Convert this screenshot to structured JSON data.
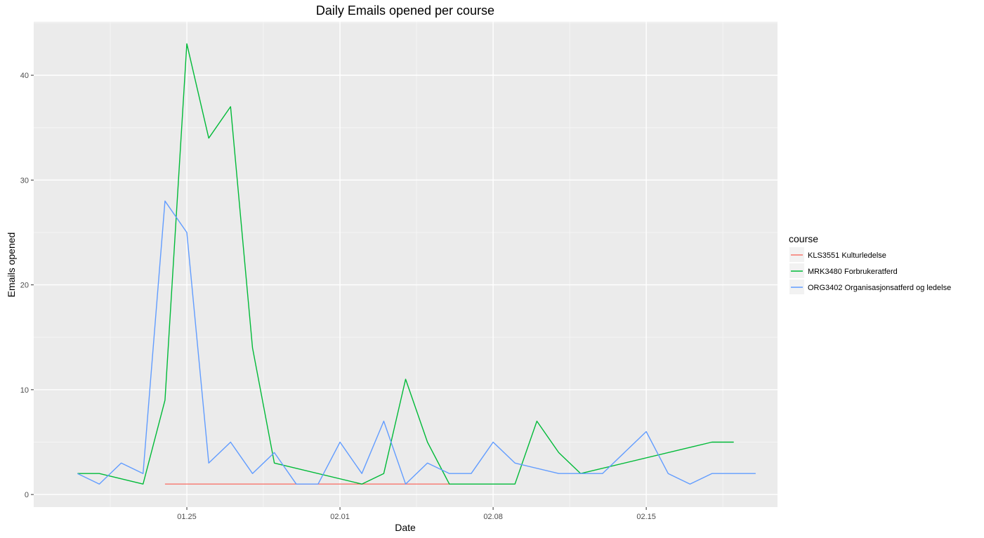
{
  "chart_data": {
    "type": "line",
    "title": "Daily Emails opened per course",
    "xlabel": "Date",
    "ylabel": "Emails opened",
    "x_ticks": [
      {
        "date": "2018-01-25",
        "label": "01.25"
      },
      {
        "date": "2018-02-01",
        "label": "02.01"
      },
      {
        "date": "2018-02-08",
        "label": "02.08"
      },
      {
        "date": "2018-02-15",
        "label": "02.15"
      }
    ],
    "xlim": [
      "2018-01-18",
      "2018-02-21"
    ],
    "y_ticks": [
      0,
      10,
      20,
      30,
      40
    ],
    "ylim": [
      -1.2,
      45.1
    ],
    "grid": true,
    "legend": {
      "title": "course",
      "position": "right"
    },
    "series": [
      {
        "name": "KLS3551 Kulturledelse",
        "color": "#F8766D",
        "points": [
          [
            "2018-01-24",
            1
          ],
          [
            "2018-01-25",
            1
          ],
          [
            "2018-01-26",
            1
          ],
          [
            "2018-01-27",
            1
          ],
          [
            "2018-01-28",
            1
          ],
          [
            "2018-01-29",
            1
          ],
          [
            "2018-01-30",
            1
          ],
          [
            "2018-01-31",
            1
          ],
          [
            "2018-02-01",
            1
          ],
          [
            "2018-02-02",
            1
          ],
          [
            "2018-02-03",
            1
          ],
          [
            "2018-02-04",
            1
          ],
          [
            "2018-02-05",
            1
          ],
          [
            "2018-02-06",
            1
          ]
        ]
      },
      {
        "name": "MRK3480 Forbrukeratferd",
        "color": "#00BA38",
        "points": [
          [
            "2018-01-20",
            2
          ],
          [
            "2018-01-21",
            2
          ],
          [
            "2018-01-23",
            1
          ],
          [
            "2018-01-24",
            9
          ],
          [
            "2018-01-25",
            43
          ],
          [
            "2018-01-26",
            34
          ],
          [
            "2018-01-27",
            37
          ],
          [
            "2018-01-28",
            14
          ],
          [
            "2018-01-29",
            3
          ],
          [
            "2018-02-02",
            1
          ],
          [
            "2018-02-03",
            2
          ],
          [
            "2018-02-04",
            11
          ],
          [
            "2018-02-05",
            5
          ],
          [
            "2018-02-06",
            1
          ],
          [
            "2018-02-09",
            1
          ],
          [
            "2018-02-10",
            7
          ],
          [
            "2018-02-11",
            4
          ],
          [
            "2018-02-12",
            2
          ],
          [
            "2018-02-18",
            5
          ],
          [
            "2018-02-19",
            5
          ]
        ]
      },
      {
        "name": "ORG3402 Organisasjonsatferd og ledelse",
        "color": "#619CFF",
        "points": [
          [
            "2018-01-20",
            2
          ],
          [
            "2018-01-21",
            1
          ],
          [
            "2018-01-22",
            3
          ],
          [
            "2018-01-23",
            2
          ],
          [
            "2018-01-24",
            28
          ],
          [
            "2018-01-25",
            25
          ],
          [
            "2018-01-26",
            3
          ],
          [
            "2018-01-27",
            5
          ],
          [
            "2018-01-28",
            2
          ],
          [
            "2018-01-29",
            4
          ],
          [
            "2018-01-30",
            1
          ],
          [
            "2018-01-31",
            1
          ],
          [
            "2018-02-01",
            5
          ],
          [
            "2018-02-02",
            2
          ],
          [
            "2018-02-03",
            7
          ],
          [
            "2018-02-04",
            1
          ],
          [
            "2018-02-05",
            3
          ],
          [
            "2018-02-06",
            2
          ],
          [
            "2018-02-07",
            2
          ],
          [
            "2018-02-08",
            5
          ],
          [
            "2018-02-09",
            3
          ],
          [
            "2018-02-11",
            2
          ],
          [
            "2018-02-13",
            2
          ],
          [
            "2018-02-15",
            6
          ],
          [
            "2018-02-16",
            2
          ],
          [
            "2018-02-17",
            1
          ],
          [
            "2018-02-18",
            2
          ],
          [
            "2018-02-20",
            2
          ]
        ]
      }
    ]
  }
}
